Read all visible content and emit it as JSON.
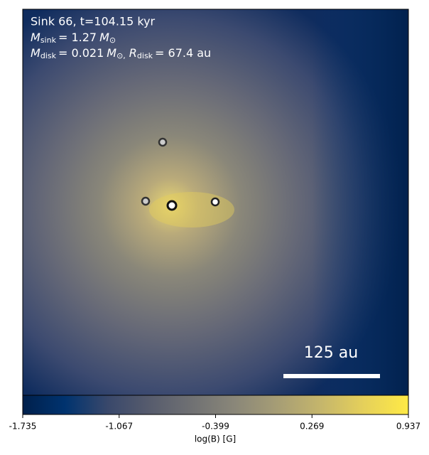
{
  "chart_data": {
    "type": "image",
    "title": "Sink 66, t=104.15 kyr",
    "mass_line": {
      "symbol": "M",
      "symbol_sub": "sink",
      "value": "= 1.27",
      "unit": "M",
      "unit_sub": "⊙"
    },
    "disk_line": {
      "mass_symbol": "M",
      "mass_sub": "disk",
      "mass_value": "= 0.021",
      "mass_unit": "M",
      "mass_unit_sub": "⊙,",
      "radius_symbol": "R",
      "radius_sub": "disk",
      "radius_value": "= 67.4 au"
    },
    "scale_bar": "125 au",
    "colorbar": {
      "label": "log(B) [G]",
      "colormap": "cividis",
      "lim": [
        -1.735,
        0.937
      ],
      "ticks": [
        -1.735,
        -1.067,
        -0.399,
        0.269,
        0.937
      ]
    }
  }
}
